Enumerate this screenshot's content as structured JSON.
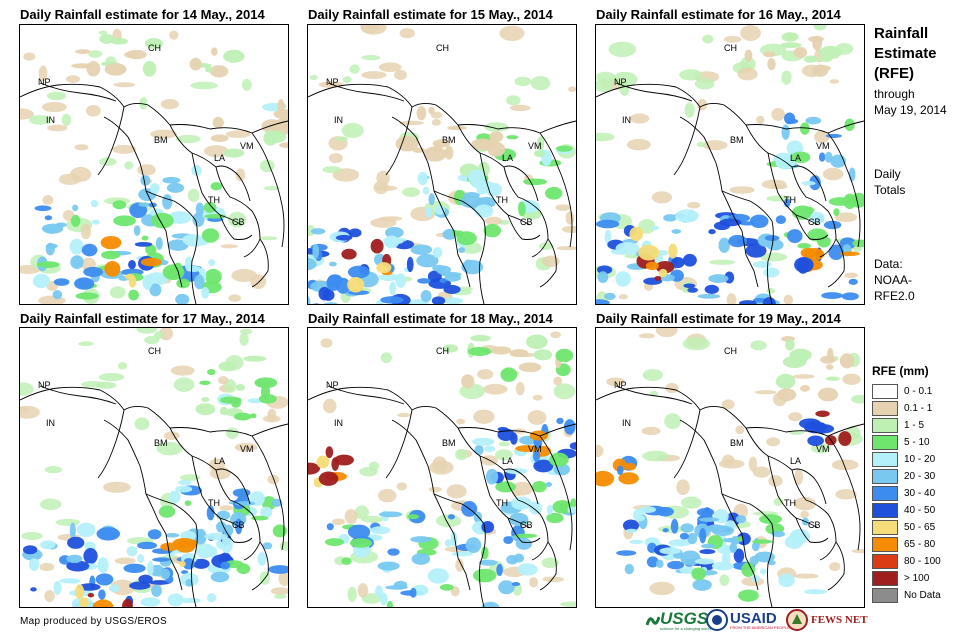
{
  "panels": [
    {
      "title": "Daily Rainfall estimate for 14 May., 2014"
    },
    {
      "title": "Daily Rainfall estimate for 15 May., 2014"
    },
    {
      "title": "Daily Rainfall estimate for 16 May., 2014"
    },
    {
      "title": "Daily Rainfall estimate for 17 May., 2014"
    },
    {
      "title": "Daily Rainfall estimate for 18 May., 2014"
    },
    {
      "title": "Daily Rainfall estimate for 19 May., 2014"
    }
  ],
  "country_labels": {
    "CH": "CH",
    "NP": "NP",
    "IN": "IN",
    "BM": "BM",
    "LA": "LA",
    "VM": "VM",
    "TH": "TH",
    "CB": "CB"
  },
  "sidebar": {
    "title_line1": "Rainfall",
    "title_line2": "Estimate",
    "title_line3": "(RFE)",
    "through": "through",
    "date": "May 19, 2014",
    "daily": "Daily",
    "totals": "Totals",
    "data_label": "Data:",
    "source1": "NOAA-",
    "source2": "RFE2.0"
  },
  "legend": {
    "title": "RFE (mm)",
    "items": [
      {
        "label": "0 - 0.1",
        "color": "#ffffff"
      },
      {
        "label": "0.1 - 1",
        "color": "#e6d2b0"
      },
      {
        "label": "1 - 5",
        "color": "#bef0b4"
      },
      {
        "label": "5 - 10",
        "color": "#6ee66e"
      },
      {
        "label": "10 - 20",
        "color": "#b4f0fa"
      },
      {
        "label": "20 - 30",
        "color": "#78c8f0"
      },
      {
        "label": "30 - 40",
        "color": "#3c8cf0"
      },
      {
        "label": "40 - 50",
        "color": "#1e50dc"
      },
      {
        "label": "50 - 65",
        "color": "#f5dc78"
      },
      {
        "label": "65 - 80",
        "color": "#f58c00"
      },
      {
        "label": "80 - 100",
        "color": "#dc3c14"
      },
      {
        "label": "> 100",
        "color": "#a01e1e"
      },
      {
        "label": "No Data",
        "color": "#8c8c8c"
      }
    ]
  },
  "footer": {
    "credit": "Map produced by USGS/EROS",
    "usgs": "USGS",
    "usgs_tag": "science for a changing world",
    "usaid": "USAID",
    "usaid_tag": "FROM THE AMERICAN PEOPLE",
    "fews": "FEWS NET"
  }
}
